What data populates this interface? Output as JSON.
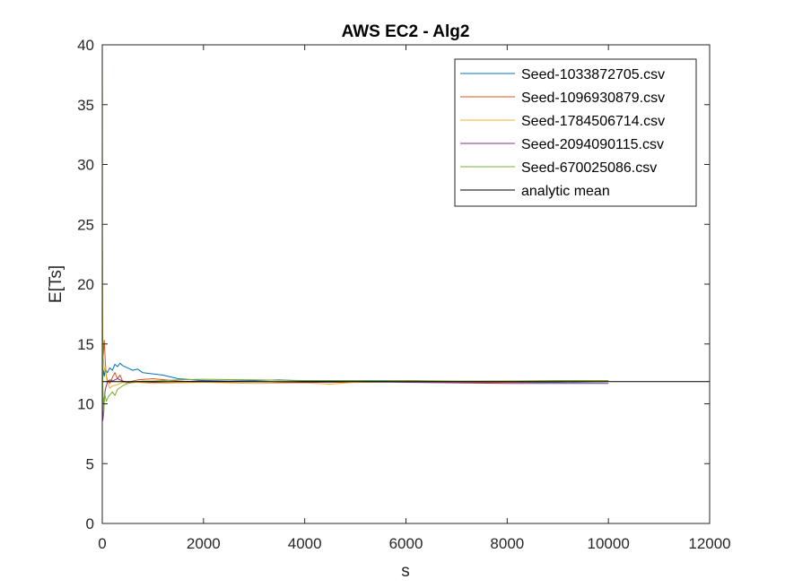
{
  "chart_data": {
    "type": "line",
    "title": "AWS EC2 - Alg2",
    "xlabel": "s",
    "ylabel": "E[Ts]",
    "xlim": [
      0,
      12000
    ],
    "ylim": [
      0,
      40
    ],
    "xticks": [
      0,
      2000,
      4000,
      6000,
      8000,
      10000,
      12000
    ],
    "yticks": [
      0,
      5,
      10,
      15,
      20,
      25,
      30,
      35,
      40
    ],
    "grid": false,
    "legend_position": "top-right",
    "series": [
      {
        "name": "Seed-1033872705.csv",
        "color": "#0072BD",
        "points": [
          [
            1,
            10
          ],
          [
            5,
            13
          ],
          [
            10,
            12.2
          ],
          [
            20,
            12.8
          ],
          [
            40,
            12.3
          ],
          [
            60,
            12.9
          ],
          [
            100,
            12.6
          ],
          [
            150,
            13.0
          ],
          [
            200,
            12.8
          ],
          [
            250,
            13.3
          ],
          [
            300,
            13.1
          ],
          [
            350,
            13.4
          ],
          [
            400,
            13.2
          ],
          [
            500,
            13.0
          ],
          [
            600,
            12.8
          ],
          [
            700,
            12.9
          ],
          [
            800,
            12.6
          ],
          [
            1000,
            12.5
          ],
          [
            1200,
            12.4
          ],
          [
            1500,
            12.1
          ],
          [
            2000,
            11.95
          ],
          [
            2500,
            11.9
          ],
          [
            3000,
            11.95
          ],
          [
            3500,
            12.0
          ],
          [
            4000,
            11.9
          ],
          [
            5000,
            11.85
          ],
          [
            6000,
            11.95
          ],
          [
            7000,
            11.85
          ],
          [
            8000,
            11.8
          ],
          [
            9000,
            11.8
          ],
          [
            10000,
            11.85
          ]
        ]
      },
      {
        "name": "Seed-1096930879.csv",
        "color": "#D95319",
        "points": [
          [
            1,
            23
          ],
          [
            5,
            17
          ],
          [
            10,
            15.5
          ],
          [
            20,
            14
          ],
          [
            40,
            15.3
          ],
          [
            60,
            13.5
          ],
          [
            80,
            12.3
          ],
          [
            100,
            12.0
          ],
          [
            150,
            11.7
          ],
          [
            200,
            12.2
          ],
          [
            250,
            12.6
          ],
          [
            300,
            12.1
          ],
          [
            350,
            12.4
          ],
          [
            400,
            11.9
          ],
          [
            500,
            11.8
          ],
          [
            700,
            12.0
          ],
          [
            1000,
            12.1
          ],
          [
            1500,
            11.9
          ],
          [
            2000,
            11.8
          ],
          [
            3000,
            11.85
          ],
          [
            4000,
            11.8
          ],
          [
            5000,
            11.8
          ],
          [
            6000,
            11.85
          ],
          [
            7000,
            11.8
          ],
          [
            8000,
            11.8
          ],
          [
            9000,
            11.85
          ],
          [
            10000,
            11.9
          ]
        ]
      },
      {
        "name": "Seed-1784506714.csv",
        "color": "#EDB120",
        "points": [
          [
            1,
            20
          ],
          [
            5,
            15
          ],
          [
            10,
            14.5
          ],
          [
            20,
            13.8
          ],
          [
            40,
            12.8
          ],
          [
            60,
            13.1
          ],
          [
            80,
            12.2
          ],
          [
            100,
            11.8
          ],
          [
            150,
            11.3
          ],
          [
            200,
            11.5
          ],
          [
            300,
            11.6
          ],
          [
            400,
            11.8
          ],
          [
            500,
            11.7
          ],
          [
            700,
            11.8
          ],
          [
            1000,
            11.7
          ],
          [
            1500,
            11.75
          ],
          [
            2000,
            11.8
          ],
          [
            3000,
            11.7
          ],
          [
            4000,
            11.75
          ],
          [
            4500,
            11.65
          ],
          [
            5000,
            11.8
          ],
          [
            6000,
            11.85
          ],
          [
            7000,
            11.85
          ],
          [
            8000,
            11.9
          ],
          [
            9000,
            11.85
          ],
          [
            10000,
            11.9
          ]
        ]
      },
      {
        "name": "Seed-2094090115.csv",
        "color": "#7E2F8E",
        "points": [
          [
            1,
            12
          ],
          [
            5,
            10
          ],
          [
            10,
            8.6
          ],
          [
            20,
            9.0
          ],
          [
            40,
            10.5
          ],
          [
            60,
            11.2
          ],
          [
            80,
            11.5
          ],
          [
            100,
            11.8
          ],
          [
            150,
            12.0
          ],
          [
            200,
            11.9
          ],
          [
            300,
            12.1
          ],
          [
            400,
            11.9
          ],
          [
            500,
            11.8
          ],
          [
            700,
            11.85
          ],
          [
            1000,
            11.8
          ],
          [
            1500,
            11.85
          ],
          [
            2000,
            11.9
          ],
          [
            3000,
            11.85
          ],
          [
            4000,
            11.8
          ],
          [
            5000,
            11.85
          ],
          [
            6000,
            11.8
          ],
          [
            7000,
            11.75
          ],
          [
            8000,
            11.7
          ],
          [
            9000,
            11.7
          ],
          [
            10000,
            11.7
          ]
        ]
      },
      {
        "name": "Seed-670025086.csv",
        "color": "#77AC30",
        "points": [
          [
            1,
            40
          ],
          [
            3,
            28
          ],
          [
            5,
            15
          ],
          [
            10,
            11.5
          ],
          [
            20,
            10.2
          ],
          [
            30,
            9.3
          ],
          [
            50,
            10.8
          ],
          [
            80,
            10.2
          ],
          [
            120,
            10.6
          ],
          [
            160,
            10.8
          ],
          [
            200,
            11.0
          ],
          [
            250,
            10.7
          ],
          [
            300,
            11.2
          ],
          [
            400,
            11.5
          ],
          [
            500,
            11.7
          ],
          [
            600,
            11.8
          ],
          [
            800,
            11.9
          ],
          [
            1000,
            11.9
          ],
          [
            1500,
            12.0
          ],
          [
            2000,
            12.05
          ],
          [
            3000,
            12.0
          ],
          [
            4000,
            11.95
          ],
          [
            5000,
            11.95
          ],
          [
            6000,
            11.95
          ],
          [
            7000,
            11.9
          ],
          [
            8000,
            11.9
          ],
          [
            9000,
            11.95
          ],
          [
            10000,
            11.95
          ]
        ]
      },
      {
        "name": "analytic mean",
        "color": "#000000",
        "points": [
          [
            0,
            11.85
          ],
          [
            12000,
            11.85
          ]
        ]
      }
    ]
  }
}
